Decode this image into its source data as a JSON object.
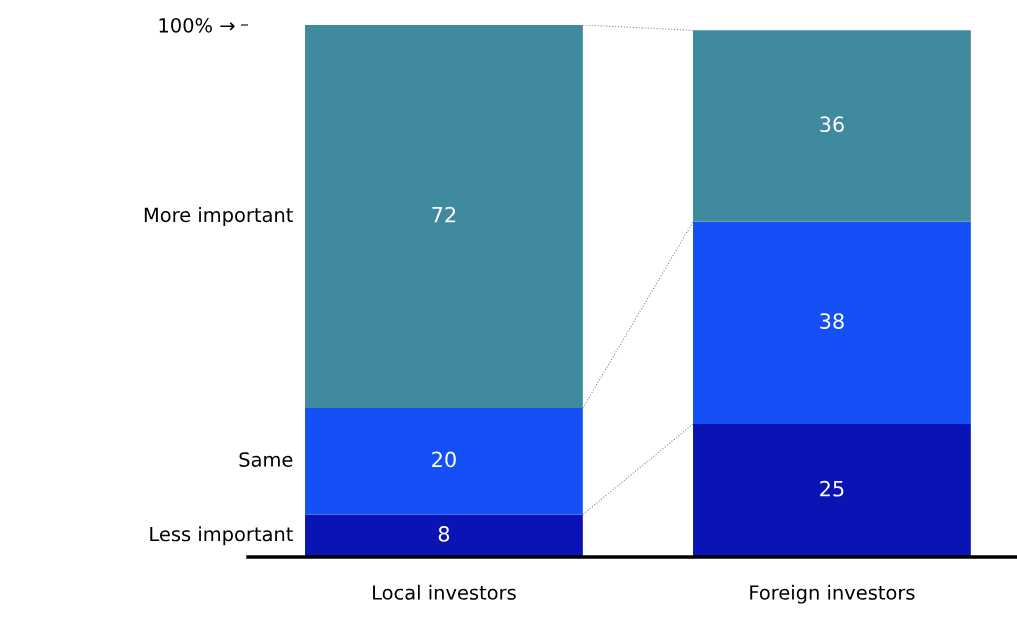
{
  "chart_data": {
    "type": "bar",
    "stacked": true,
    "data_labels": true,
    "categories": [
      "Local investors",
      "Foreign investors"
    ],
    "series": [
      {
        "name": "Less important",
        "color": "#0a14b4",
        "values": [
          8,
          25
        ]
      },
      {
        "name": "Same",
        "color": "#1450f5",
        "values": [
          20,
          38
        ]
      },
      {
        "name": "More important",
        "color": "#3f8a9e",
        "values": [
          72,
          36
        ]
      }
    ],
    "ylim": [
      0,
      100
    ],
    "yticks": [
      {
        "value": 100,
        "label": "100% →"
      }
    ],
    "grid": false,
    "legend": false
  }
}
